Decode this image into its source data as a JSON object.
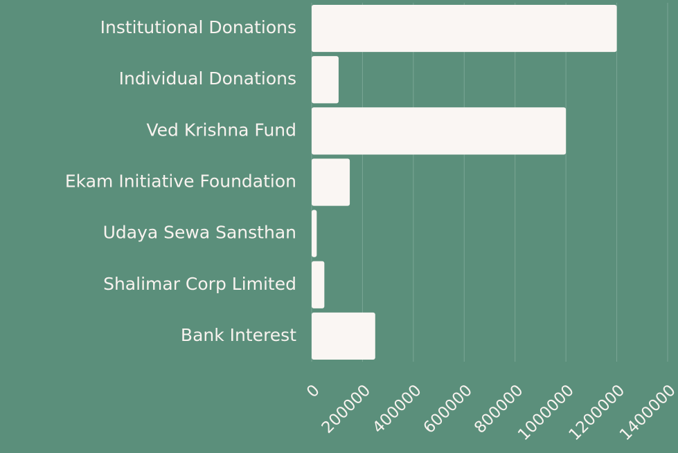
{
  "chart_data": {
    "type": "bar",
    "orientation": "horizontal",
    "categories": [
      "Institutional Donations",
      "Individual Donations",
      "Ved Krishna Fund",
      "Ekam Initiative Foundation",
      "Udaya Sewa Sansthan",
      "Shalimar Corp Limited",
      "Bank Interest"
    ],
    "values": [
      1200000,
      106000,
      1000000,
      150000,
      20000,
      50000,
      250000
    ],
    "color": "#faf6f3",
    "xlim": [
      0,
      1400000
    ],
    "xticks": [
      0,
      200000,
      400000,
      600000,
      800000,
      1000000,
      1200000,
      1400000
    ],
    "grid": true
  }
}
